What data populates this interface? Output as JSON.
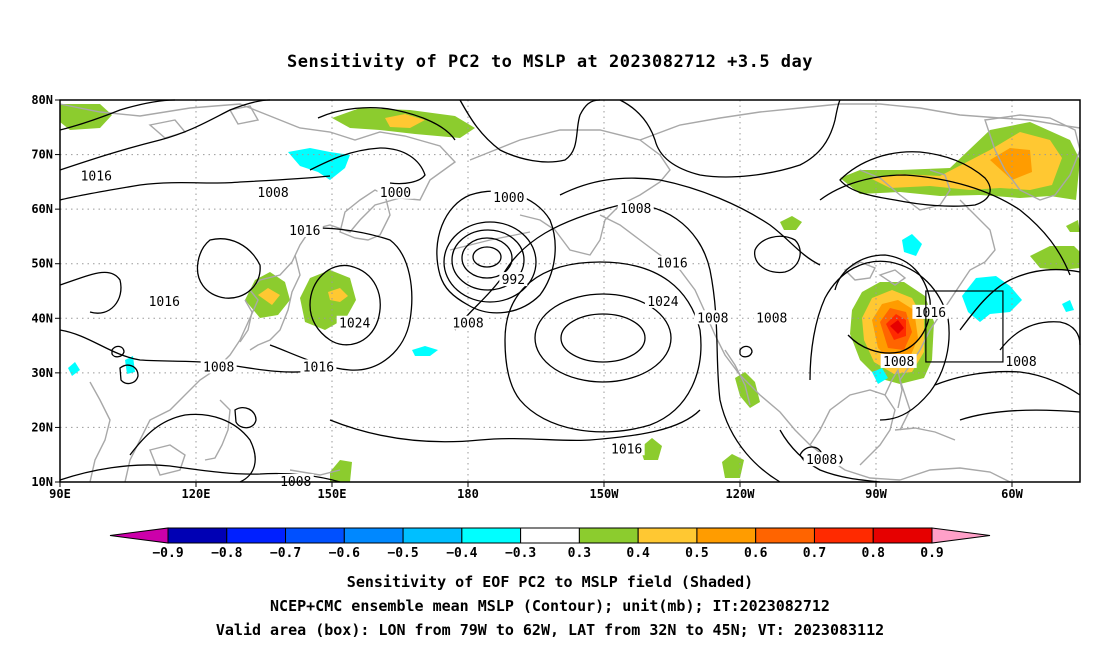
{
  "title": "Sensitivity of PC2 to MSLP at 2023082712 +3.5 day",
  "lat_labels": [
    "80N",
    "70N",
    "60N",
    "50N",
    "40N",
    "30N",
    "20N",
    "10N"
  ],
  "lon_labels": [
    "90E",
    "120E",
    "150E",
    "180",
    "150W",
    "120W",
    "90W",
    "60W"
  ],
  "contour_labels": [
    {
      "text": "1016",
      "lon": 98,
      "lat": 66
    },
    {
      "text": "1008",
      "lon": 137,
      "lat": 63
    },
    {
      "text": "1000",
      "lon": 164,
      "lat": 63
    },
    {
      "text": "1000",
      "lon": 189,
      "lat": 62
    },
    {
      "text": "1008",
      "lon": 217,
      "lon_note": "",
      "lat": 60
    },
    {
      "text": "1016",
      "lon": 144,
      "lat": 56
    },
    {
      "text": "992",
      "lon": 190,
      "lat": 47
    },
    {
      "text": "1016",
      "lon": 225,
      "lat": 50
    },
    {
      "text": "1016",
      "lon": 113,
      "lat": 43
    },
    {
      "text": "1024",
      "lon": 223,
      "lat": 43
    },
    {
      "text": "1024",
      "lon": 155,
      "lat": 39
    },
    {
      "text": "1008",
      "lon": 180,
      "lat": 39
    },
    {
      "text": "1008",
      "lon": 234,
      "lat": 40
    },
    {
      "text": "1008",
      "lon": 247,
      "lat": 40
    },
    {
      "text": "1016",
      "lon": 282,
      "lat": 41
    },
    {
      "text": "1008",
      "lon": 275,
      "lat": 32
    },
    {
      "text": "1008",
      "lon": 302,
      "lat": 32
    },
    {
      "text": "1008",
      "lon": 125,
      "lat": 31
    },
    {
      "text": "1016",
      "lon": 147,
      "lat": 31
    },
    {
      "text": "1016",
      "lon": 215,
      "lat": 16
    },
    {
      "text": "1008",
      "lon": 258,
      "lat": 14
    },
    {
      "text": "1008",
      "lon": 142,
      "lat": 10
    }
  ],
  "shading_levels": [
    "-0.9",
    "-0.8",
    "-0.7",
    "-0.6",
    "-0.5",
    "-0.4",
    "-0.3",
    "0.3",
    "0.4",
    "0.5",
    "0.6",
    "0.7",
    "0.8",
    "0.9"
  ],
  "shading_colors": [
    "#cc00aa",
    "#0000b4",
    "#0020ff",
    "#0050ff",
    "#0088ff",
    "#00bfff",
    "#00ffff",
    "#ffffff",
    "#8ccc2e",
    "#ffc832",
    "#ff9c00",
    "#ff6400",
    "#ff2a00",
    "#e60000",
    "#ffa0c8"
  ],
  "captions": [
    "Sensitivity of EOF PC2 to MSLP field (Shaded)",
    "NCEP+CMC ensemble mean MSLP (Contour); unit(mb); IT:2023082712",
    "Valid area (box): LON from 79W to 62W, LAT from 32N to 45N; VT: 2023083112"
  ],
  "valid_box": {
    "lon_min": 281,
    "lon_max": 298,
    "lat_min": 32,
    "lat_max": 45
  },
  "map_extent": {
    "lon_min": 90,
    "lon_max": 315,
    "lat_min": 10,
    "lat_max": 80
  }
}
